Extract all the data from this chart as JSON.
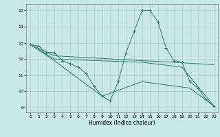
{
  "xlabel": "Humidex (Indice chaleur)",
  "bg_color": "#c8e8e8",
  "grid_color": "#b0c8c8",
  "line_color": "#277a6a",
  "xlim": [
    -0.5,
    23.5
  ],
  "ylim": [
    8.7,
    15.4
  ],
  "yticks": [
    9,
    10,
    11,
    12,
    13,
    14,
    15
  ],
  "xticks": [
    0,
    1,
    2,
    3,
    4,
    5,
    6,
    7,
    8,
    9,
    10,
    11,
    12,
    13,
    14,
    15,
    16,
    17,
    18,
    19,
    20,
    21,
    22,
    23
  ],
  "series": [
    {
      "x": [
        0,
        1,
        2,
        3,
        4,
        5,
        6,
        7,
        8,
        9,
        10,
        11,
        12,
        13,
        14,
        15,
        16,
        17,
        18,
        19,
        20,
        21,
        22,
        23
      ],
      "y": [
        12.9,
        12.8,
        12.4,
        12.4,
        11.9,
        11.7,
        11.5,
        11.1,
        10.3,
        9.7,
        9.4,
        10.6,
        12.4,
        13.7,
        15.0,
        15.0,
        14.3,
        12.7,
        11.9,
        11.8,
        10.6,
        10.2,
        9.5,
        9.1
      ],
      "marker": true
    },
    {
      "x": [
        0,
        3,
        14,
        18,
        23
      ],
      "y": [
        12.9,
        12.2,
        11.9,
        11.8,
        11.65
      ],
      "marker": false
    },
    {
      "x": [
        0,
        3,
        14,
        19,
        23
      ],
      "y": [
        12.9,
        12.0,
        11.8,
        11.5,
        9.1
      ],
      "marker": false
    },
    {
      "x": [
        0,
        3,
        9,
        14,
        20,
        23
      ],
      "y": [
        12.9,
        11.9,
        9.7,
        10.6,
        10.2,
        9.1
      ],
      "marker": false
    }
  ]
}
